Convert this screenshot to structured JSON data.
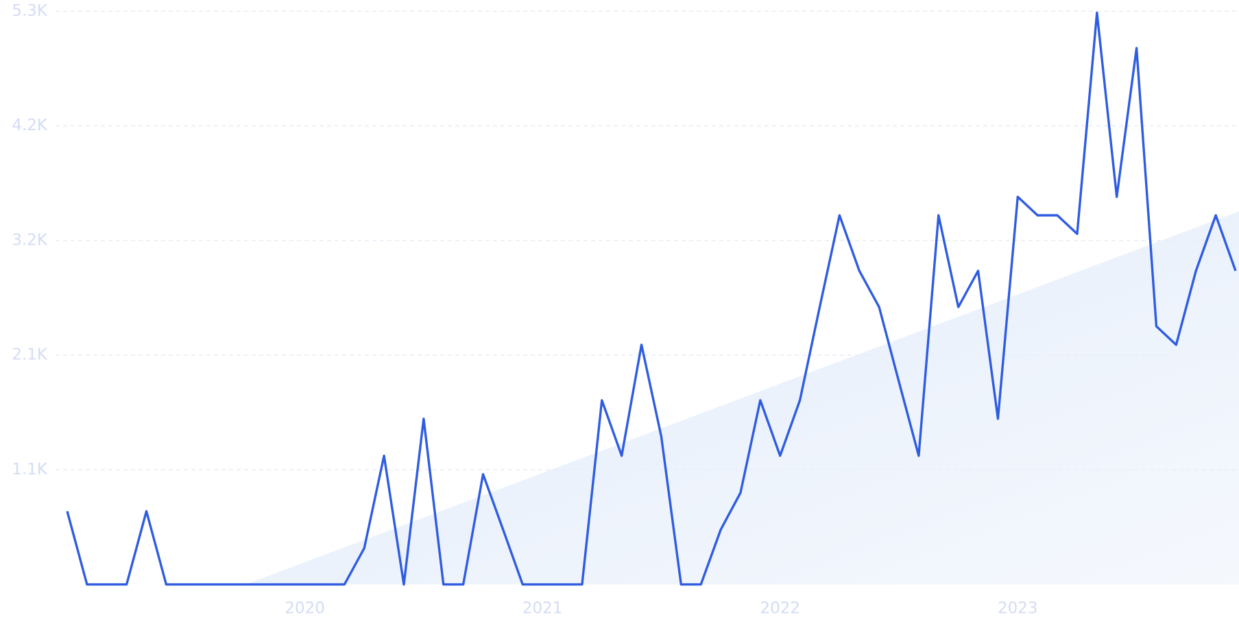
{
  "chart_data": {
    "type": "line",
    "categories": [
      null,
      null,
      null,
      null,
      null,
      null,
      null,
      null,
      null,
      null,
      null,
      null,
      "2020",
      null,
      null,
      null,
      null,
      null,
      null,
      null,
      null,
      null,
      null,
      null,
      "2021",
      null,
      null,
      null,
      null,
      null,
      null,
      null,
      null,
      null,
      null,
      null,
      "2022",
      null,
      null,
      null,
      null,
      null,
      null,
      null,
      null,
      null,
      null,
      null,
      "2023",
      null,
      null,
      null,
      null,
      null,
      null,
      null,
      null,
      null,
      null,
      null
    ],
    "series": [
      {
        "color": "#2f5ce0",
        "values": [
          677,
          0,
          0,
          0,
          677,
          0,
          0,
          0,
          0,
          0,
          0,
          0,
          0,
          0,
          0,
          335,
          1190,
          0,
          1532,
          0,
          0,
          1019,
          513,
          0,
          0,
          0,
          0,
          1703,
          1190,
          2216,
          1368,
          0,
          0,
          506,
          848,
          1703,
          1190,
          1703,
          2565,
          3413,
          2900,
          2565,
          1874,
          1190,
          3413,
          2565,
          2900,
          1532,
          3584,
          3413,
          3413,
          3242,
          5286,
          3584,
          4959,
          2387,
          2216,
          2900,
          3413,
          2900
        ]
      }
    ],
    "ylim": [
      0,
      5300
    ],
    "yticks": [
      {
        "value": 1060,
        "label": "1.1K"
      },
      {
        "value": 2120,
        "label": "2.1K"
      },
      {
        "value": 3180,
        "label": "3.2K"
      },
      {
        "value": 4240,
        "label": "4.2K"
      },
      {
        "value": 5300,
        "label": "5.3K"
      }
    ],
    "grid": true,
    "trend": true
  }
}
